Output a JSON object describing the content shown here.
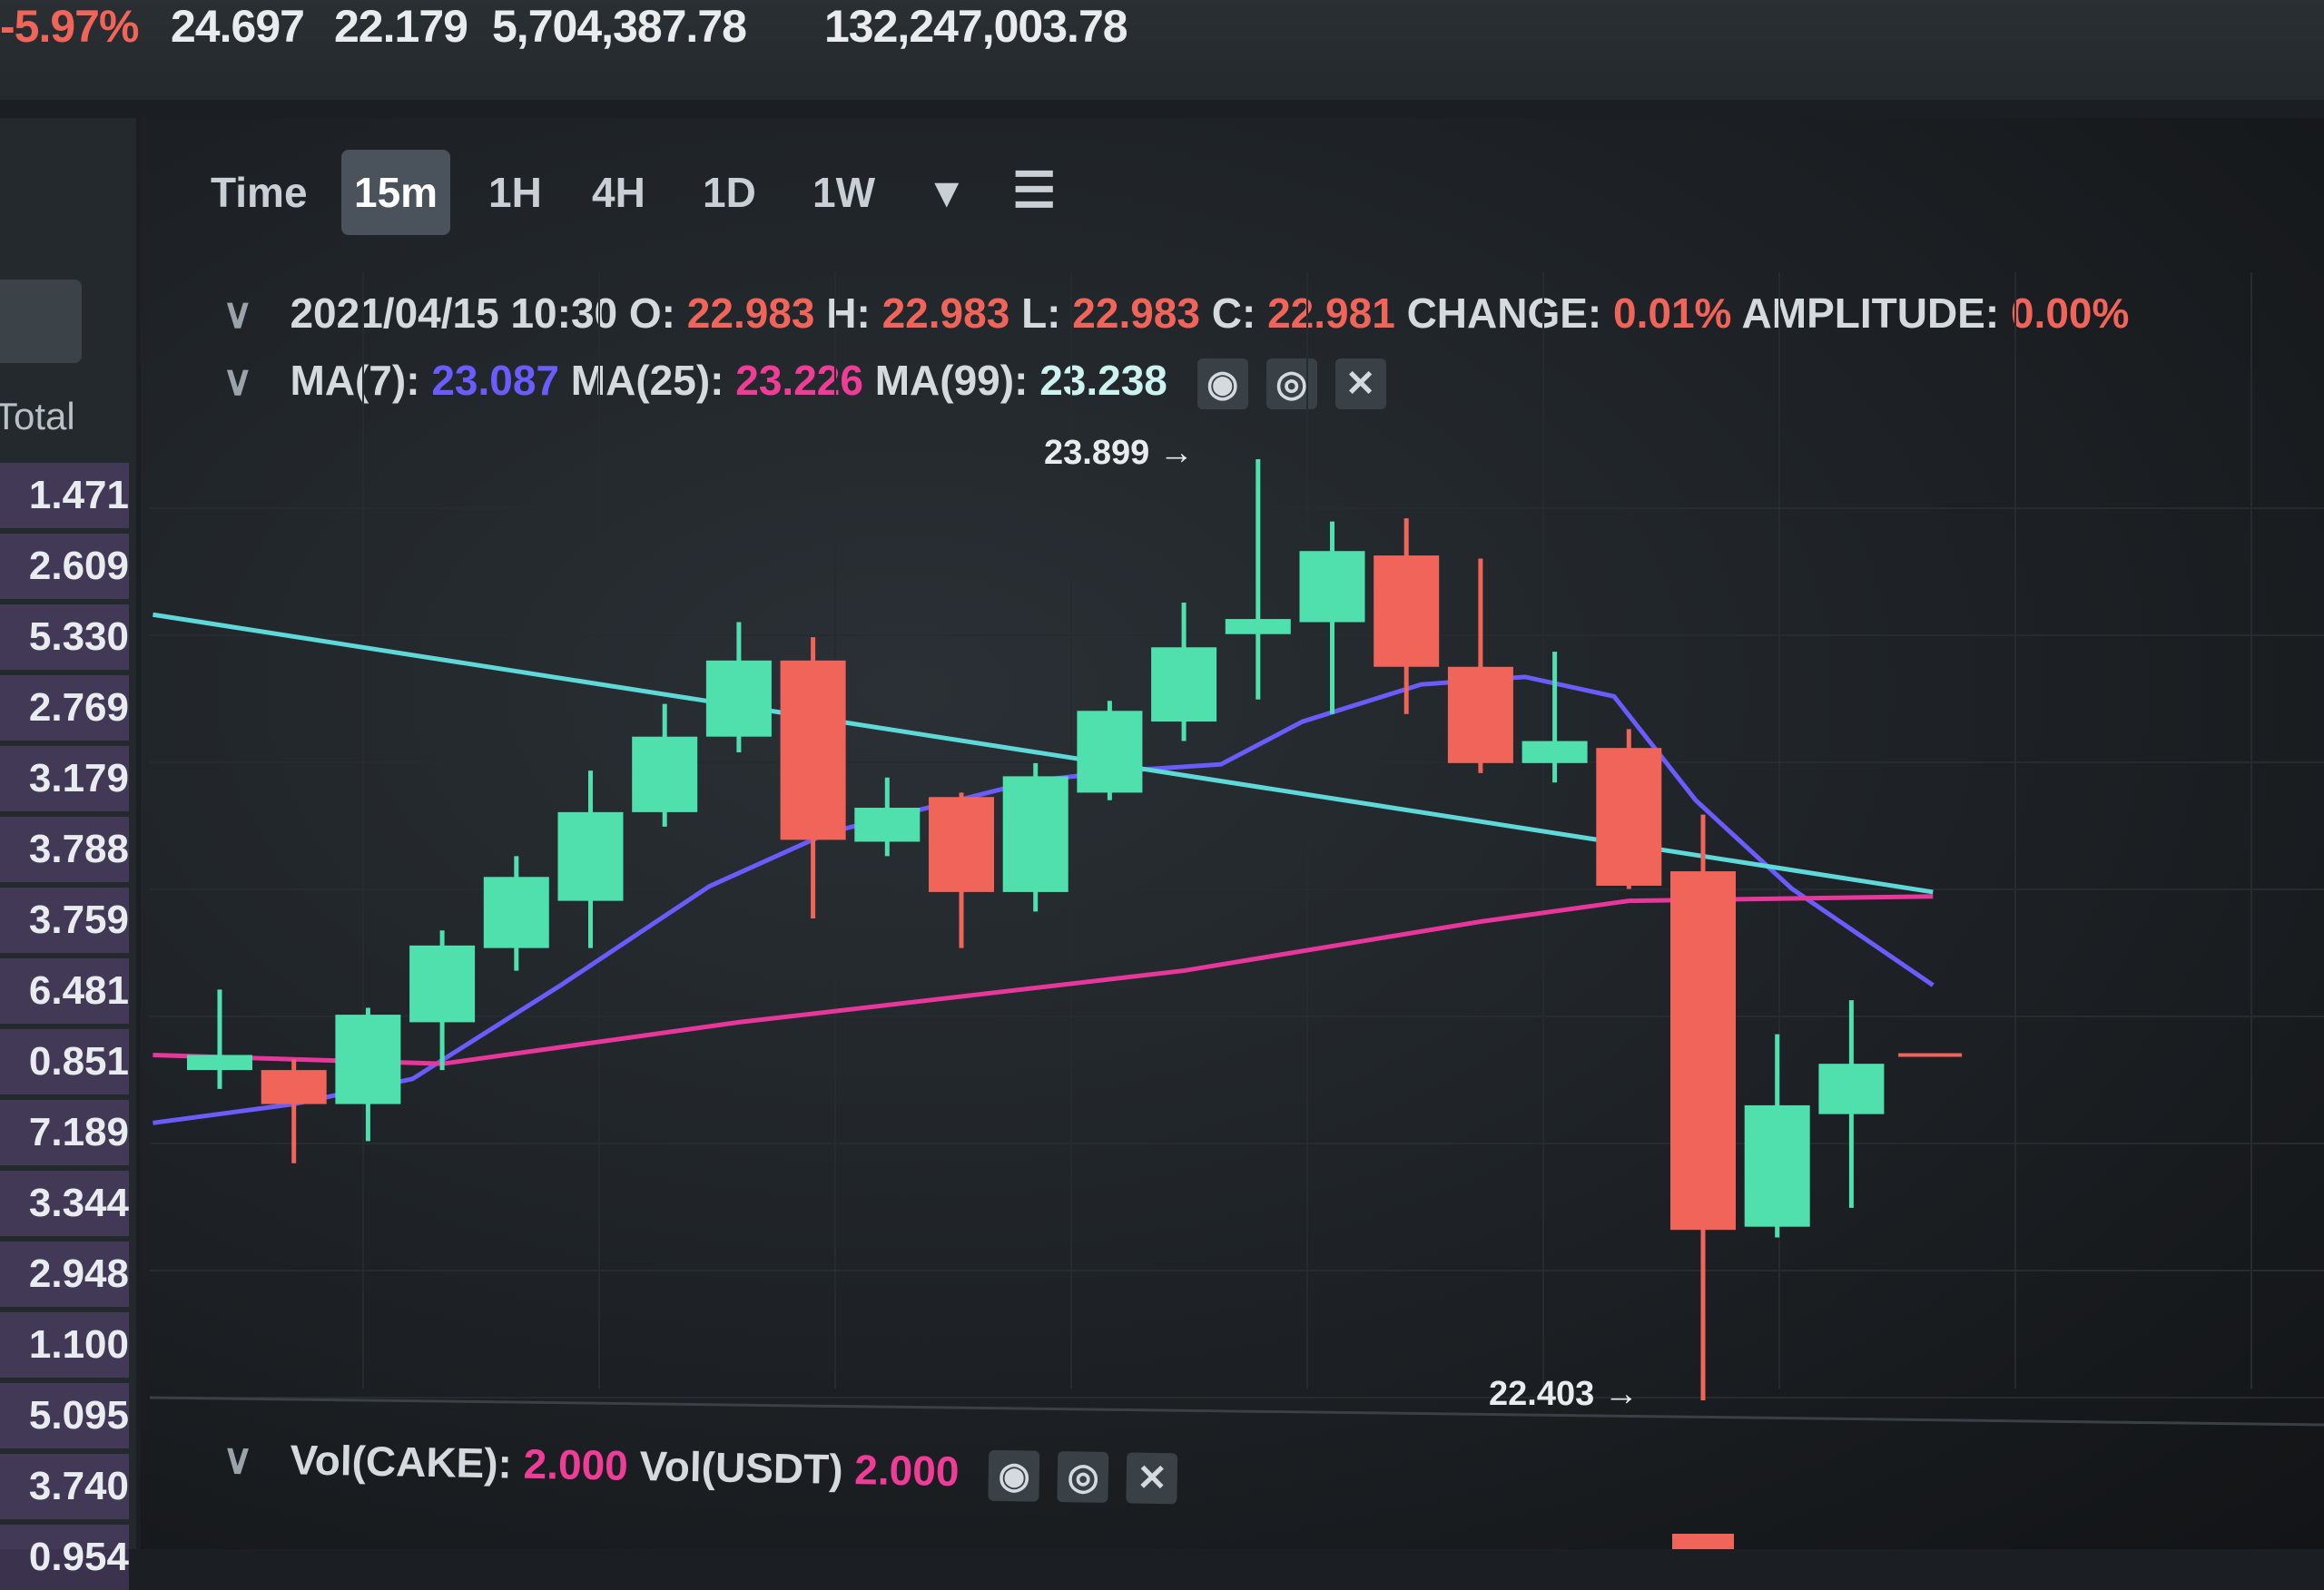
{
  "ticker": {
    "change": "-5.97%",
    "high": "24.697",
    "low": "22.179",
    "vol_base": "5,704,387.78",
    "vol_quote": "132,247,003.78"
  },
  "orderbook": {
    "header": "Total",
    "rows": [
      "1.471",
      "2.609",
      "5.330",
      "2.769",
      "3.179",
      "3.788",
      "3.759",
      "6.481",
      "0.851",
      "7.189",
      "3.344",
      "2.948",
      "1.100",
      "5.095",
      "3.740",
      "0.954"
    ]
  },
  "toolbar": {
    "items": [
      "Time",
      "15m",
      "1H",
      "4H",
      "1D",
      "1W"
    ],
    "active": "15m",
    "more_icon": "caret-down-icon",
    "settings_icon": "sliders-icon"
  },
  "ohlc": {
    "datetime": "2021/04/15 10:30",
    "o_label": "O:",
    "o": "22.983",
    "h_label": "H:",
    "h": "22.983",
    "l_label": "L:",
    "l": "22.983",
    "c_label": "C:",
    "c": "22.981",
    "change_label": "CHANGE:",
    "change": "0.01%",
    "amp_label": "AMPLITUDE:",
    "amp": "0.00%"
  },
  "ma": {
    "ma7_label": "MA(7):",
    "ma7": "23.087",
    "ma25_label": "MA(25):",
    "ma25": "23.226",
    "ma99_label": "MA(99):",
    "ma99": "23.238"
  },
  "vol": {
    "cake_label": "Vol(CAKE):",
    "cake": "2.000",
    "usdt_label": "Vol(USDT)",
    "usdt": "2.000"
  },
  "colors": {
    "up": "#4fe0ae",
    "down": "#f0645a",
    "ma7": "#6a5cff",
    "ma25": "#e8379a",
    "ma99": "#5fd8d8"
  },
  "chart_data": {
    "type": "candlestick",
    "annotations": {
      "high_label": "23.899",
      "low_label": "22.403"
    },
    "last_price": 22.952,
    "candles": [
      {
        "o": 22.928,
        "h": 23.056,
        "l": 22.898,
        "c": 22.952
      },
      {
        "o": 22.928,
        "h": 22.945,
        "l": 22.78,
        "c": 22.874
      },
      {
        "o": 22.874,
        "h": 23.027,
        "l": 22.815,
        "c": 23.016
      },
      {
        "o": 23.004,
        "h": 23.15,
        "l": 22.928,
        "c": 23.126
      },
      {
        "o": 23.122,
        "h": 23.268,
        "l": 23.086,
        "c": 23.235
      },
      {
        "o": 23.197,
        "h": 23.404,
        "l": 23.122,
        "c": 23.338
      },
      {
        "o": 23.338,
        "h": 23.51,
        "l": 23.315,
        "c": 23.458
      },
      {
        "o": 23.458,
        "h": 23.64,
        "l": 23.433,
        "c": 23.579
      },
      {
        "o": 23.579,
        "h": 23.616,
        "l": 23.169,
        "c": 23.294
      },
      {
        "o": 23.291,
        "h": 23.393,
        "l": 23.268,
        "c": 23.345
      },
      {
        "o": 23.362,
        "h": 23.369,
        "l": 23.122,
        "c": 23.211
      },
      {
        "o": 23.211,
        "h": 23.416,
        "l": 23.18,
        "c": 23.395
      },
      {
        "o": 23.369,
        "h": 23.515,
        "l": 23.357,
        "c": 23.499
      },
      {
        "o": 23.482,
        "h": 23.671,
        "l": 23.451,
        "c": 23.6
      },
      {
        "o": 23.621,
        "h": 23.899,
        "l": 23.517,
        "c": 23.645
      },
      {
        "o": 23.64,
        "h": 23.8,
        "l": 23.494,
        "c": 23.753
      },
      {
        "o": 23.746,
        "h": 23.805,
        "l": 23.494,
        "c": 23.569
      },
      {
        "o": 23.569,
        "h": 23.741,
        "l": 23.4,
        "c": 23.416
      },
      {
        "o": 23.416,
        "h": 23.593,
        "l": 23.385,
        "c": 23.451
      },
      {
        "o": 23.44,
        "h": 23.47,
        "l": 23.216,
        "c": 23.221
      },
      {
        "o": 23.244,
        "h": 23.334,
        "l": 22.403,
        "c": 22.674
      },
      {
        "o": 22.679,
        "h": 22.985,
        "l": 22.662,
        "c": 22.872
      },
      {
        "o": 22.858,
        "h": 23.039,
        "l": 22.709,
        "c": 22.938
      }
    ],
    "series": [
      {
        "name": "MA(7)",
        "x": [
          0.1,
          2,
          3.6,
          5.6,
          7.6,
          9.2,
          12,
          13.2,
          14.5,
          15.6,
          17.2,
          18.6,
          19.8,
          20.9,
          22.2,
          24.1
        ],
        "y": [
          22.844,
          22.874,
          22.914,
          23.063,
          23.22,
          23.305,
          23.388,
          23.404,
          23.414,
          23.482,
          23.541,
          23.553,
          23.522,
          23.357,
          23.216,
          23.063
        ]
      },
      {
        "name": "MA(25)",
        "x": [
          0.1,
          4,
          8,
          14,
          18,
          20,
          24.1
        ],
        "y": [
          22.952,
          22.938,
          23.004,
          23.086,
          23.164,
          23.197,
          23.204
        ]
      },
      {
        "name": "MA(99)",
        "x": [
          0.1,
          24.1
        ],
        "y": [
          23.652,
          23.211
        ]
      }
    ]
  }
}
